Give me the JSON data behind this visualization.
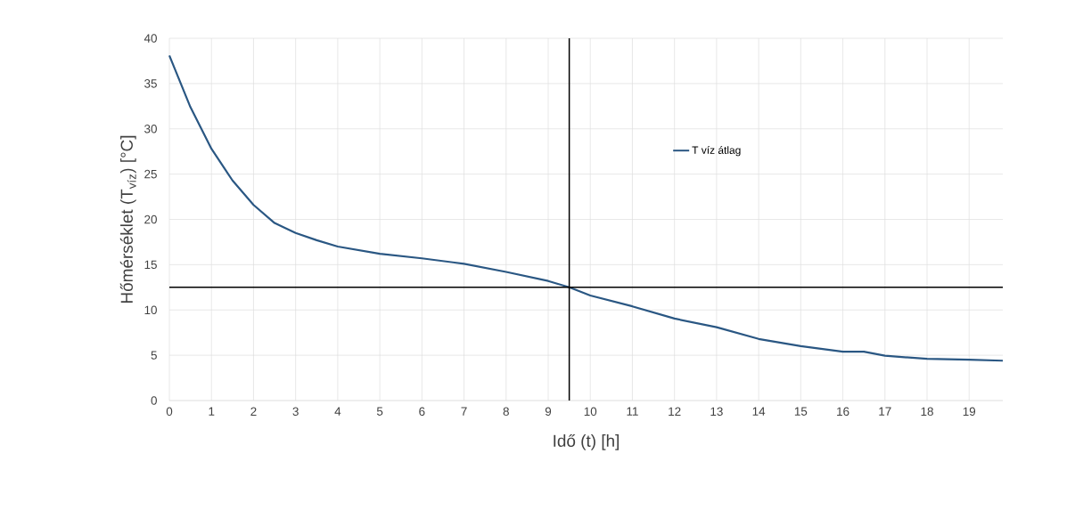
{
  "chart_data": {
    "type": "line",
    "xlabel": "Idő (t) [h]",
    "ylabel": "Hőmérséklet (T$_{víz}$) [°C]",
    "x": [
      0,
      0.5,
      1,
      1.5,
      2,
      2.5,
      3,
      3.5,
      4,
      5,
      6,
      7,
      8,
      9,
      9.5,
      10,
      11,
      12,
      13,
      14,
      15,
      16,
      16.5,
      17,
      18,
      19,
      19.8
    ],
    "series": [
      {
        "name": "T víz átlag",
        "color": "#2a5783",
        "values": [
          38.1,
          32.4,
          27.8,
          24.3,
          21.6,
          19.6,
          18.5,
          17.7,
          17.0,
          16.2,
          15.7,
          15.1,
          14.2,
          13.2,
          12.5,
          11.6,
          10.4,
          9.05,
          8.1,
          6.8,
          6.0,
          5.4,
          5.4,
          4.95,
          4.6,
          4.5,
          4.4
        ]
      }
    ],
    "xlim": [
      0,
      19.8
    ],
    "xticks": [
      0,
      1,
      2,
      3,
      4,
      5,
      6,
      7,
      8,
      9,
      10,
      11,
      12,
      13,
      14,
      15,
      16,
      17,
      18,
      19
    ],
    "ylim": [
      0,
      40
    ],
    "yticks": [
      0,
      5,
      10,
      15,
      20,
      25,
      30,
      35,
      40
    ],
    "ref_lines": [
      {
        "axis": "x",
        "value": 9.5,
        "color": "#000000"
      },
      {
        "axis": "y",
        "value": 12.5,
        "color": "#000000"
      }
    ],
    "grid": true,
    "legend": "top right",
    "marker": "none",
    "line_style": "solid"
  }
}
